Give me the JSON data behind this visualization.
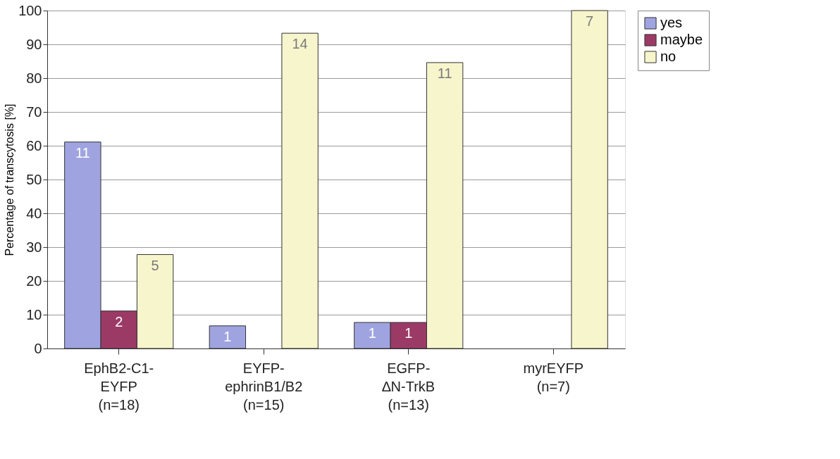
{
  "chart_data": {
    "type": "bar",
    "ylabel": "Percentage of transcytosis [%]",
    "categories": [
      "EphB2-C1-\nEYFP\n(n=18)",
      "EYFP-\nephrinB1/B2\n(n=15)",
      "EGFP-\n∆N-TrkB\n(n=13)",
      "myrEYFP\n(n=7)"
    ],
    "series": [
      {
        "name": "yes",
        "color": "#9fa4e0",
        "values": [
          61.1,
          6.7,
          7.7,
          null
        ]
      },
      {
        "name": "maybe",
        "color": "#9c3a66",
        "values": [
          11.1,
          null,
          7.7,
          null
        ]
      },
      {
        "name": "no",
        "color": "#f7f5cc",
        "values": [
          27.8,
          93.3,
          84.6,
          100
        ]
      }
    ],
    "annotations": [
      "11",
      "1",
      "1",
      "2",
      "1",
      "5",
      "14",
      "11",
      "7"
    ],
    "ylim": [
      0,
      100
    ],
    "yticks": [
      0,
      10,
      20,
      30,
      40,
      50,
      60,
      70,
      80,
      90,
      100
    ],
    "grid": "y",
    "legend": "right"
  }
}
